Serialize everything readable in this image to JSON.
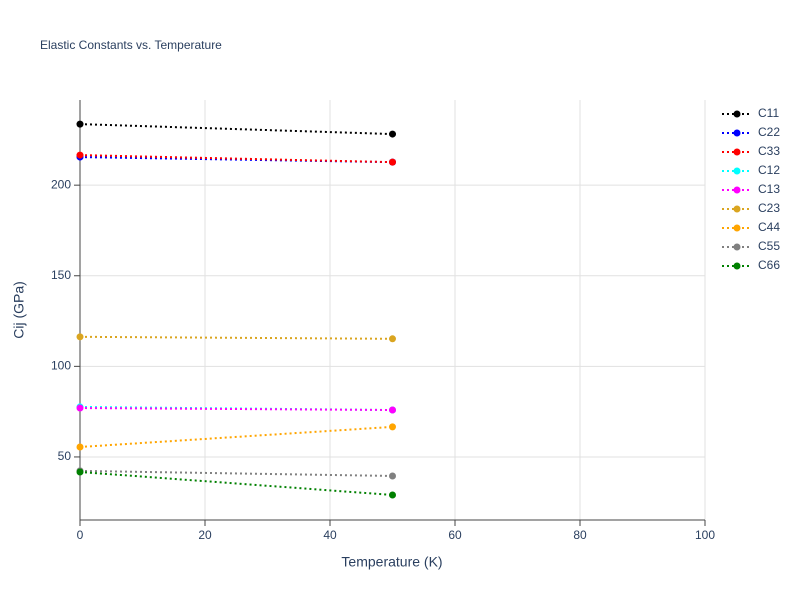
{
  "chart_data": {
    "type": "line",
    "title": "Elastic Constants vs. Temperature",
    "x_label": "Temperature (K)",
    "y_label": "Cij (GPa)",
    "x": [
      0,
      50
    ],
    "series": [
      {
        "name": "C11",
        "color": "#000000",
        "values": [
          233.7,
          228.2
        ]
      },
      {
        "name": "C22",
        "color": "#0000ff",
        "values": [
          215.5,
          212.7
        ]
      },
      {
        "name": "C33",
        "color": "#ff0000",
        "values": [
          216.6,
          212.7
        ]
      },
      {
        "name": "C12",
        "color": "#00ffff",
        "values": [
          77.6,
          75.9
        ]
      },
      {
        "name": "C13",
        "color": "#ff00ff",
        "values": [
          77.0,
          75.9
        ]
      },
      {
        "name": "C23",
        "color": "#daa520",
        "values": [
          116.3,
          115.2
        ]
      },
      {
        "name": "C44",
        "color": "#ffa500",
        "values": [
          55.5,
          66.6
        ]
      },
      {
        "name": "C55",
        "color": "#808080",
        "values": [
          42.3,
          39.5
        ]
      },
      {
        "name": "C66",
        "color": "#008000",
        "values": [
          41.7,
          29.0
        ]
      }
    ],
    "xlim": [
      0,
      100
    ],
    "xticks": [
      0,
      20,
      40,
      60,
      80,
      100
    ],
    "ylim": [
      15.2,
      247
    ],
    "yticks": [
      50,
      100,
      150,
      200
    ],
    "grid": true,
    "legend": "right"
  }
}
